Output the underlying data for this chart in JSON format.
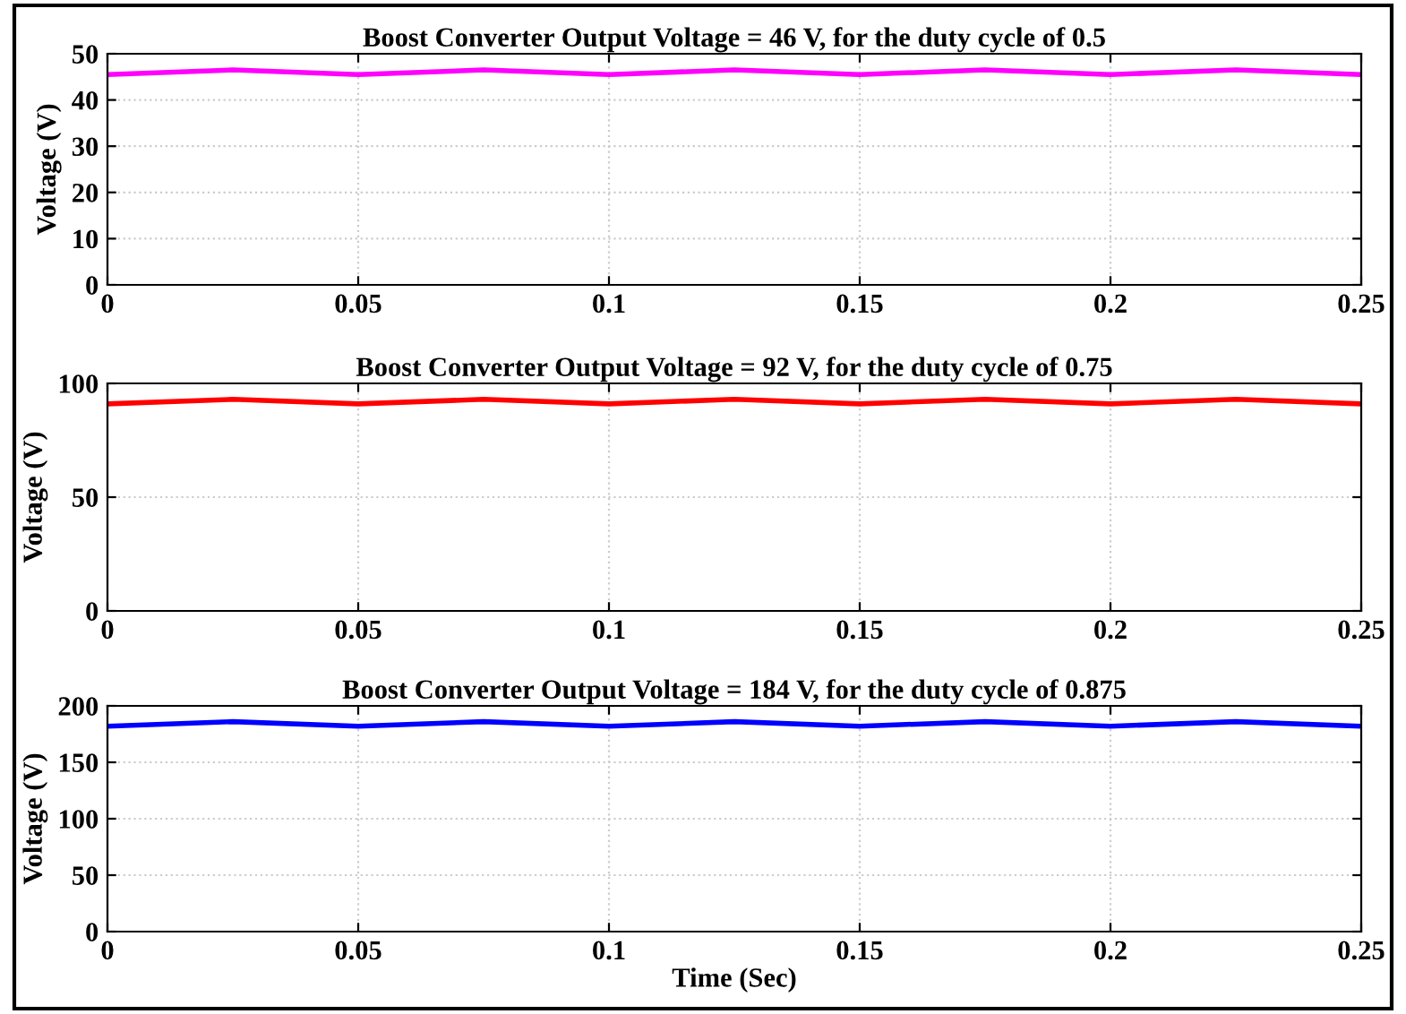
{
  "chart_data": [
    {
      "type": "line",
      "title": "Boost Converter Output Voltage = 46 V, for the duty cycle of 0.5",
      "ylabel": "Voltage (V)",
      "x": [
        0,
        0.025,
        0.05,
        0.075,
        0.1,
        0.125,
        0.15,
        0.175,
        0.2,
        0.225,
        0.25
      ],
      "series": [
        {
          "color": "#ff00ff",
          "values": [
            45.5,
            46.5,
            45.5,
            46.5,
            45.5,
            46.5,
            45.5,
            46.5,
            45.5,
            46.5,
            45.5
          ]
        }
      ],
      "xlim": [
        0,
        0.25
      ],
      "xticks": [
        0,
        0.05,
        0.1,
        0.15,
        0.2,
        0.25
      ],
      "ylim": [
        0,
        50
      ],
      "yticks": [
        0,
        10,
        20,
        30,
        40,
        50
      ],
      "grid": true,
      "line_style": "solid"
    },
    {
      "type": "line",
      "title": "Boost Converter Output Voltage = 92 V, for the duty cycle of 0.75",
      "ylabel": "Voltage (V)",
      "x": [
        0,
        0.025,
        0.05,
        0.075,
        0.1,
        0.125,
        0.15,
        0.175,
        0.2,
        0.225,
        0.25
      ],
      "series": [
        {
          "color": "#ff0000",
          "values": [
            91,
            93,
            91,
            93,
            91,
            93,
            91,
            93,
            91,
            93,
            91
          ]
        }
      ],
      "xlim": [
        0,
        0.25
      ],
      "xticks": [
        0,
        0.05,
        0.1,
        0.15,
        0.2,
        0.25
      ],
      "ylim": [
        0,
        100
      ],
      "yticks": [
        0,
        50,
        100
      ],
      "grid": true,
      "line_style": "solid"
    },
    {
      "type": "line",
      "title": "Boost Converter Output Voltage = 184 V, for the duty cycle of 0.875",
      "ylabel": "Voltage (V)",
      "xlabel": "Time (Sec)",
      "x": [
        0,
        0.025,
        0.05,
        0.075,
        0.1,
        0.125,
        0.15,
        0.175,
        0.2,
        0.225,
        0.25
      ],
      "series": [
        {
          "color": "#0000ff",
          "values": [
            182,
            186,
            182,
            186,
            182,
            186,
            182,
            186,
            182,
            186,
            182
          ]
        }
      ],
      "xlim": [
        0,
        0.25
      ],
      "xticks": [
        0,
        0.05,
        0.1,
        0.15,
        0.2,
        0.25
      ],
      "ylim": [
        0,
        200
      ],
      "yticks": [
        0,
        50,
        100,
        150,
        200
      ],
      "grid": true,
      "line_style": "solid"
    }
  ]
}
